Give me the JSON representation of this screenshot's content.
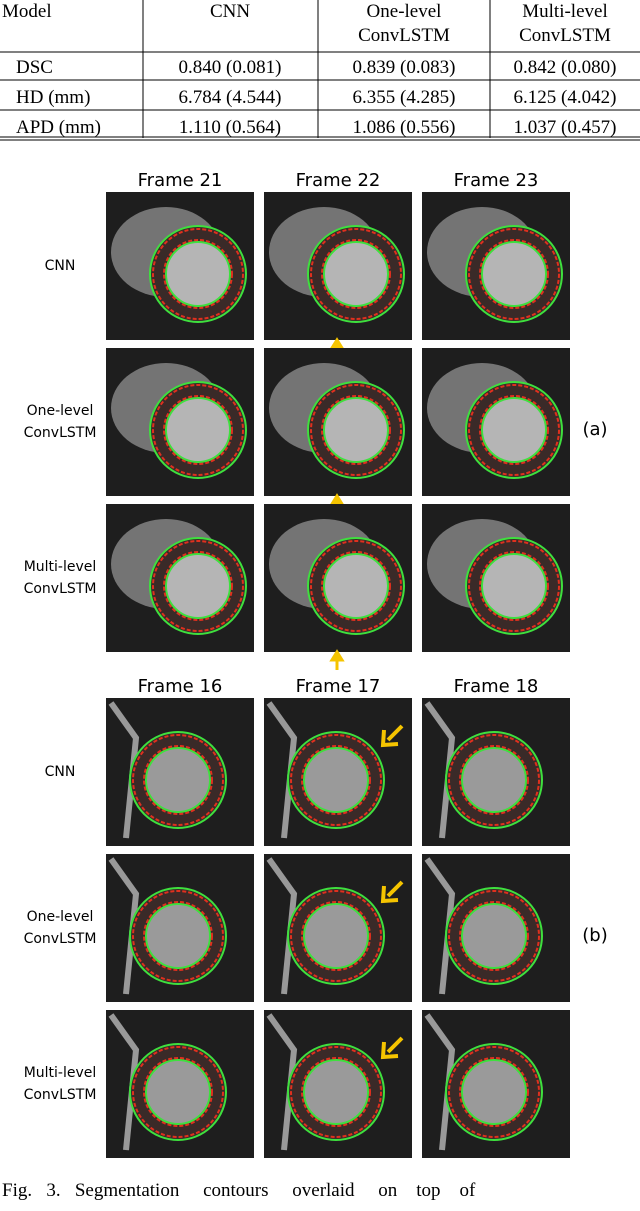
{
  "table": {
    "header": [
      [
        "Model"
      ],
      [
        "CNN"
      ],
      [
        "One-level",
        "ConvLSTM"
      ],
      [
        "Multi-level",
        "ConvLSTM"
      ]
    ],
    "rows": [
      [
        "DSC",
        "0.840 (0.081)",
        "0.839 (0.083)",
        "0.842 (0.080)"
      ],
      [
        "HD (mm)",
        "6.784 (4.544)",
        "6.355 (4.285)",
        "6.125 (4.042)"
      ],
      [
        "APD (mm)",
        "1.110 (0.564)",
        "1.086 (0.556)",
        "1.037 (0.457)"
      ]
    ]
  },
  "figure": {
    "panels": [
      {
        "frames": [
          "Frame 21",
          "Frame 22",
          "Frame 23"
        ],
        "row_labels": [
          [
            "CNN"
          ],
          [
            "One-level",
            "ConvLSTM"
          ],
          [
            "Multi-level",
            "ConvLSTM"
          ]
        ],
        "label": "(a)"
      },
      {
        "frames": [
          "Frame 16",
          "Frame 17",
          "Frame 18"
        ],
        "row_labels": [
          [
            "CNN"
          ],
          [
            "One-level",
            "ConvLSTM"
          ],
          [
            "Multi-level",
            "ConvLSTM"
          ]
        ],
        "label": "(b)"
      }
    ]
  },
  "caption": "Fig.   3.   Segmentation     contours     overlaid     on    top    of"
}
